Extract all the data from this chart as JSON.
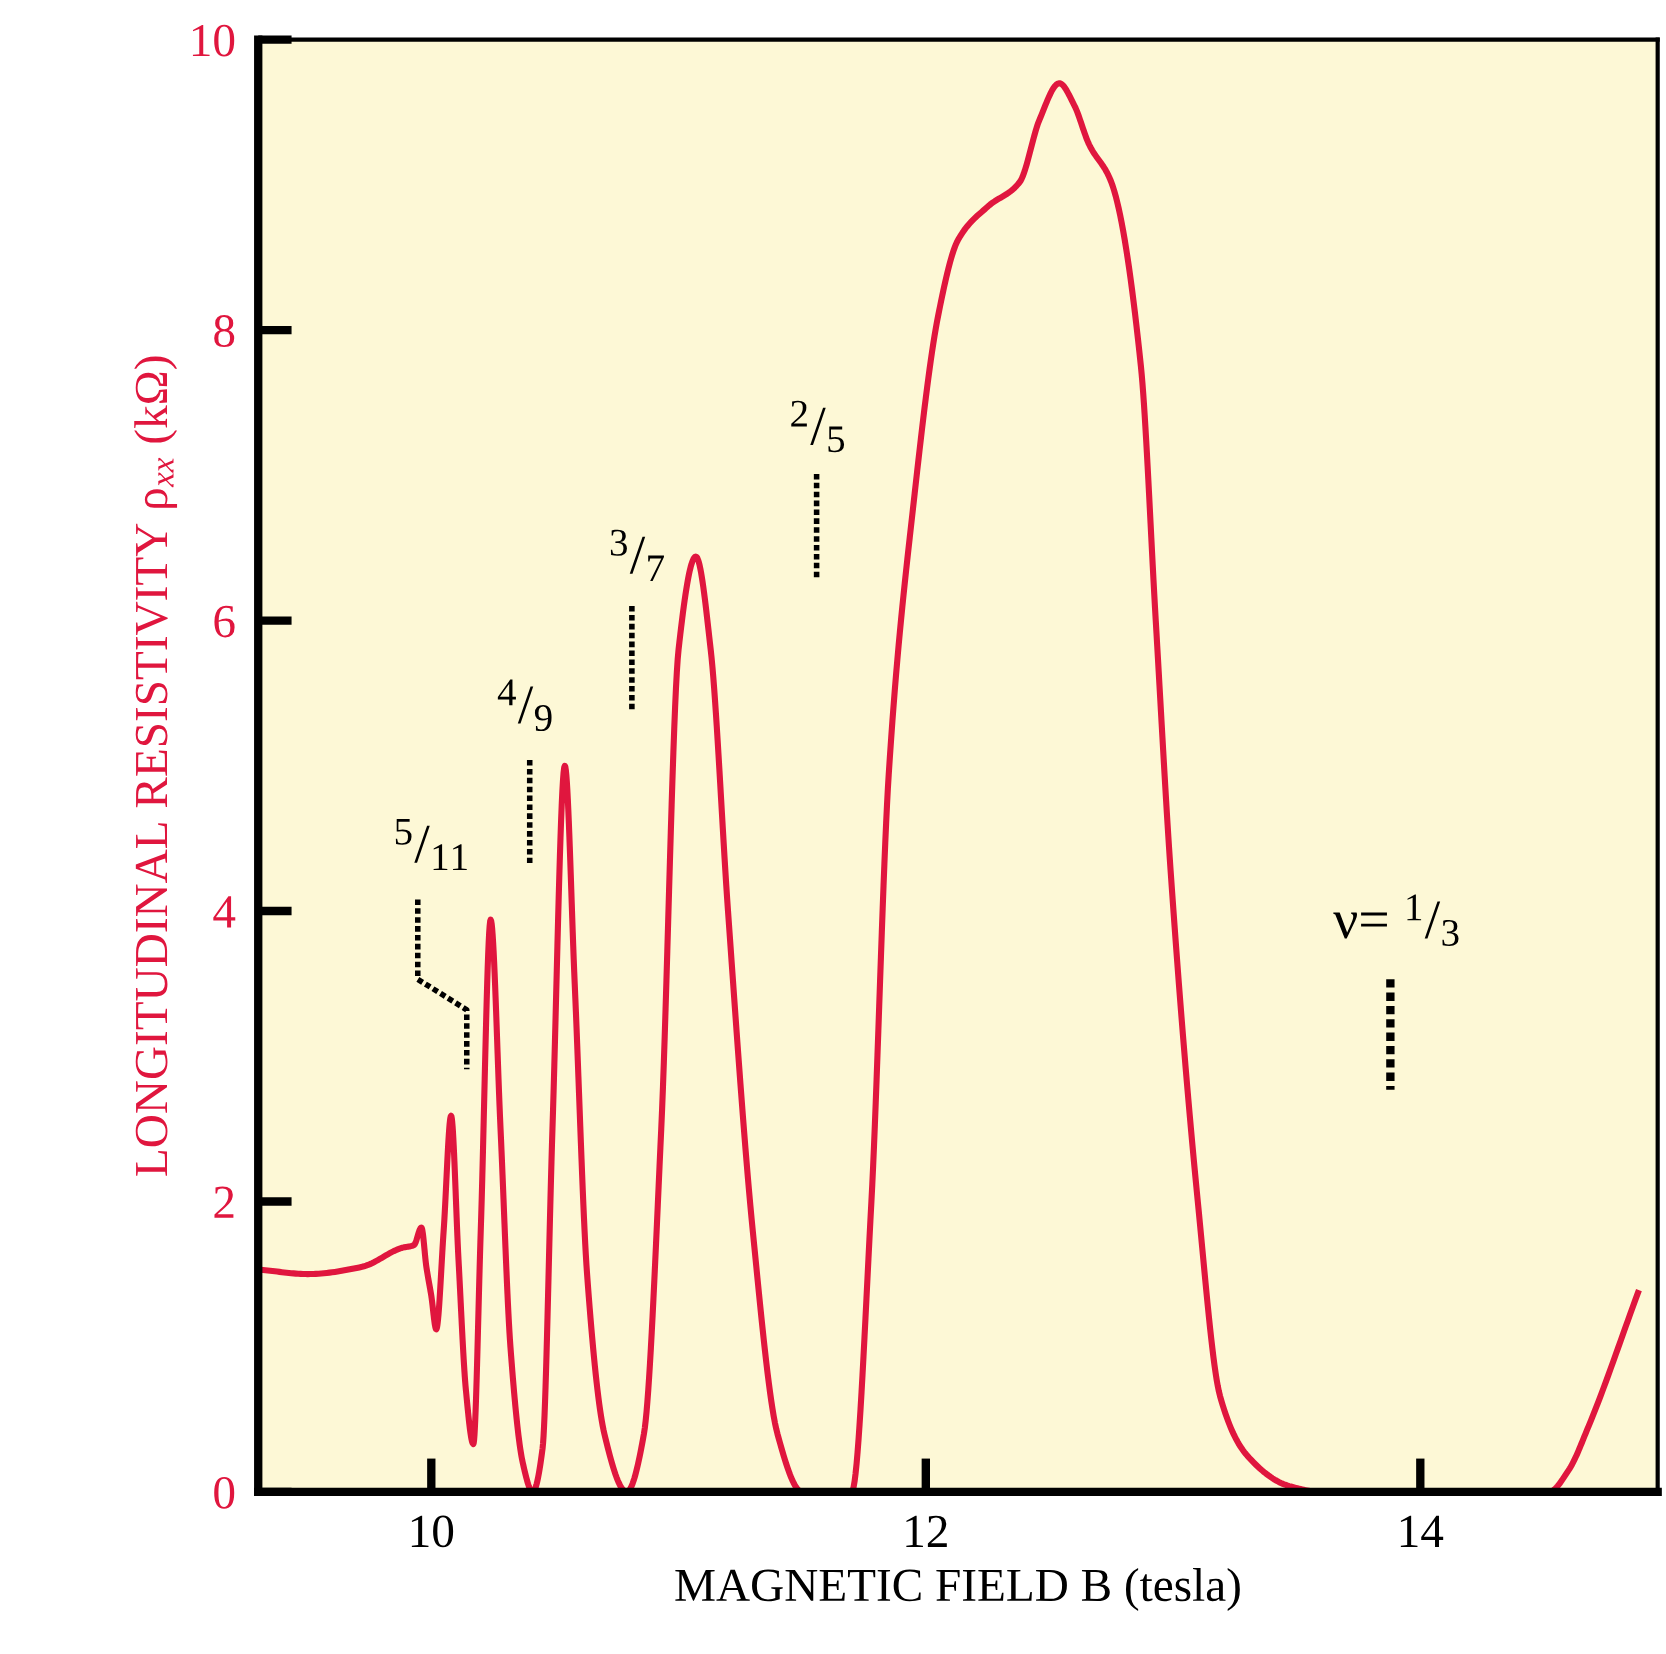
{
  "chart_data": {
    "type": "line",
    "xlabel": "MAGNETIC FIELD B (tesla)",
    "ylabel": "LONGITUDINAL RESISTIVITY ρ$_{xx}$ (kΩ)",
    "xlim": [
      9.3,
      14.96
    ],
    "ylim": [
      0,
      10
    ],
    "xticks": [
      10,
      12,
      14
    ],
    "yticks": [
      0,
      2,
      4,
      6,
      8,
      10
    ],
    "grid": false,
    "legend": false,
    "marker": "none",
    "line_style": "solid",
    "series": [
      {
        "color": "#e0163e",
        "x": [
          9.31,
          9.5,
          9.72,
          9.88,
          9.93,
          9.96,
          9.98,
          10.0,
          10.02,
          10.05,
          10.08,
          10.11,
          10.14,
          10.17,
          10.2,
          10.24,
          10.28,
          10.32,
          10.37,
          10.41,
          10.45,
          10.49,
          10.54,
          10.58,
          10.63,
          10.7,
          10.79,
          10.86,
          10.93,
          11.0,
          11.07,
          11.13,
          11.2,
          11.3,
          11.4,
          11.5,
          11.7,
          11.78,
          11.85,
          11.95,
          12.05,
          12.13,
          12.25,
          12.38,
          12.46,
          12.54,
          12.6,
          12.66,
          12.75,
          12.87,
          12.93,
          12.99,
          13.1,
          13.19,
          13.3,
          13.47,
          13.6,
          14.52,
          14.6,
          14.68,
          14.88
        ],
        "values": [
          1.53,
          1.5,
          1.55,
          1.68,
          1.7,
          1.82,
          1.55,
          1.35,
          1.12,
          1.8,
          2.59,
          1.6,
          0.7,
          0.33,
          1.8,
          3.94,
          2.5,
          1.0,
          0.2,
          0.0,
          0.3,
          2.5,
          5.0,
          3.5,
          1.5,
          0.4,
          0.0,
          0.4,
          2.5,
          5.8,
          6.44,
          5.8,
          4.0,
          1.8,
          0.4,
          0.0,
          0.0,
          2.0,
          4.94,
          6.8,
          8.1,
          8.62,
          8.85,
          9.02,
          9.45,
          9.7,
          9.55,
          9.28,
          9.02,
          7.75,
          6.0,
          4.28,
          2.0,
          0.66,
          0.25,
          0.04,
          0.0,
          0.0,
          0.15,
          0.45,
          1.37
        ]
      }
    ],
    "annotations": [
      "$^{5}$/$_{11}$",
      "$^{4}$/$_{9}$",
      "$^{3}$/$_{7}$",
      "$^{2}$/$_{5}$",
      "ν= $^{1}$/$_{3}$"
    ]
  }
}
